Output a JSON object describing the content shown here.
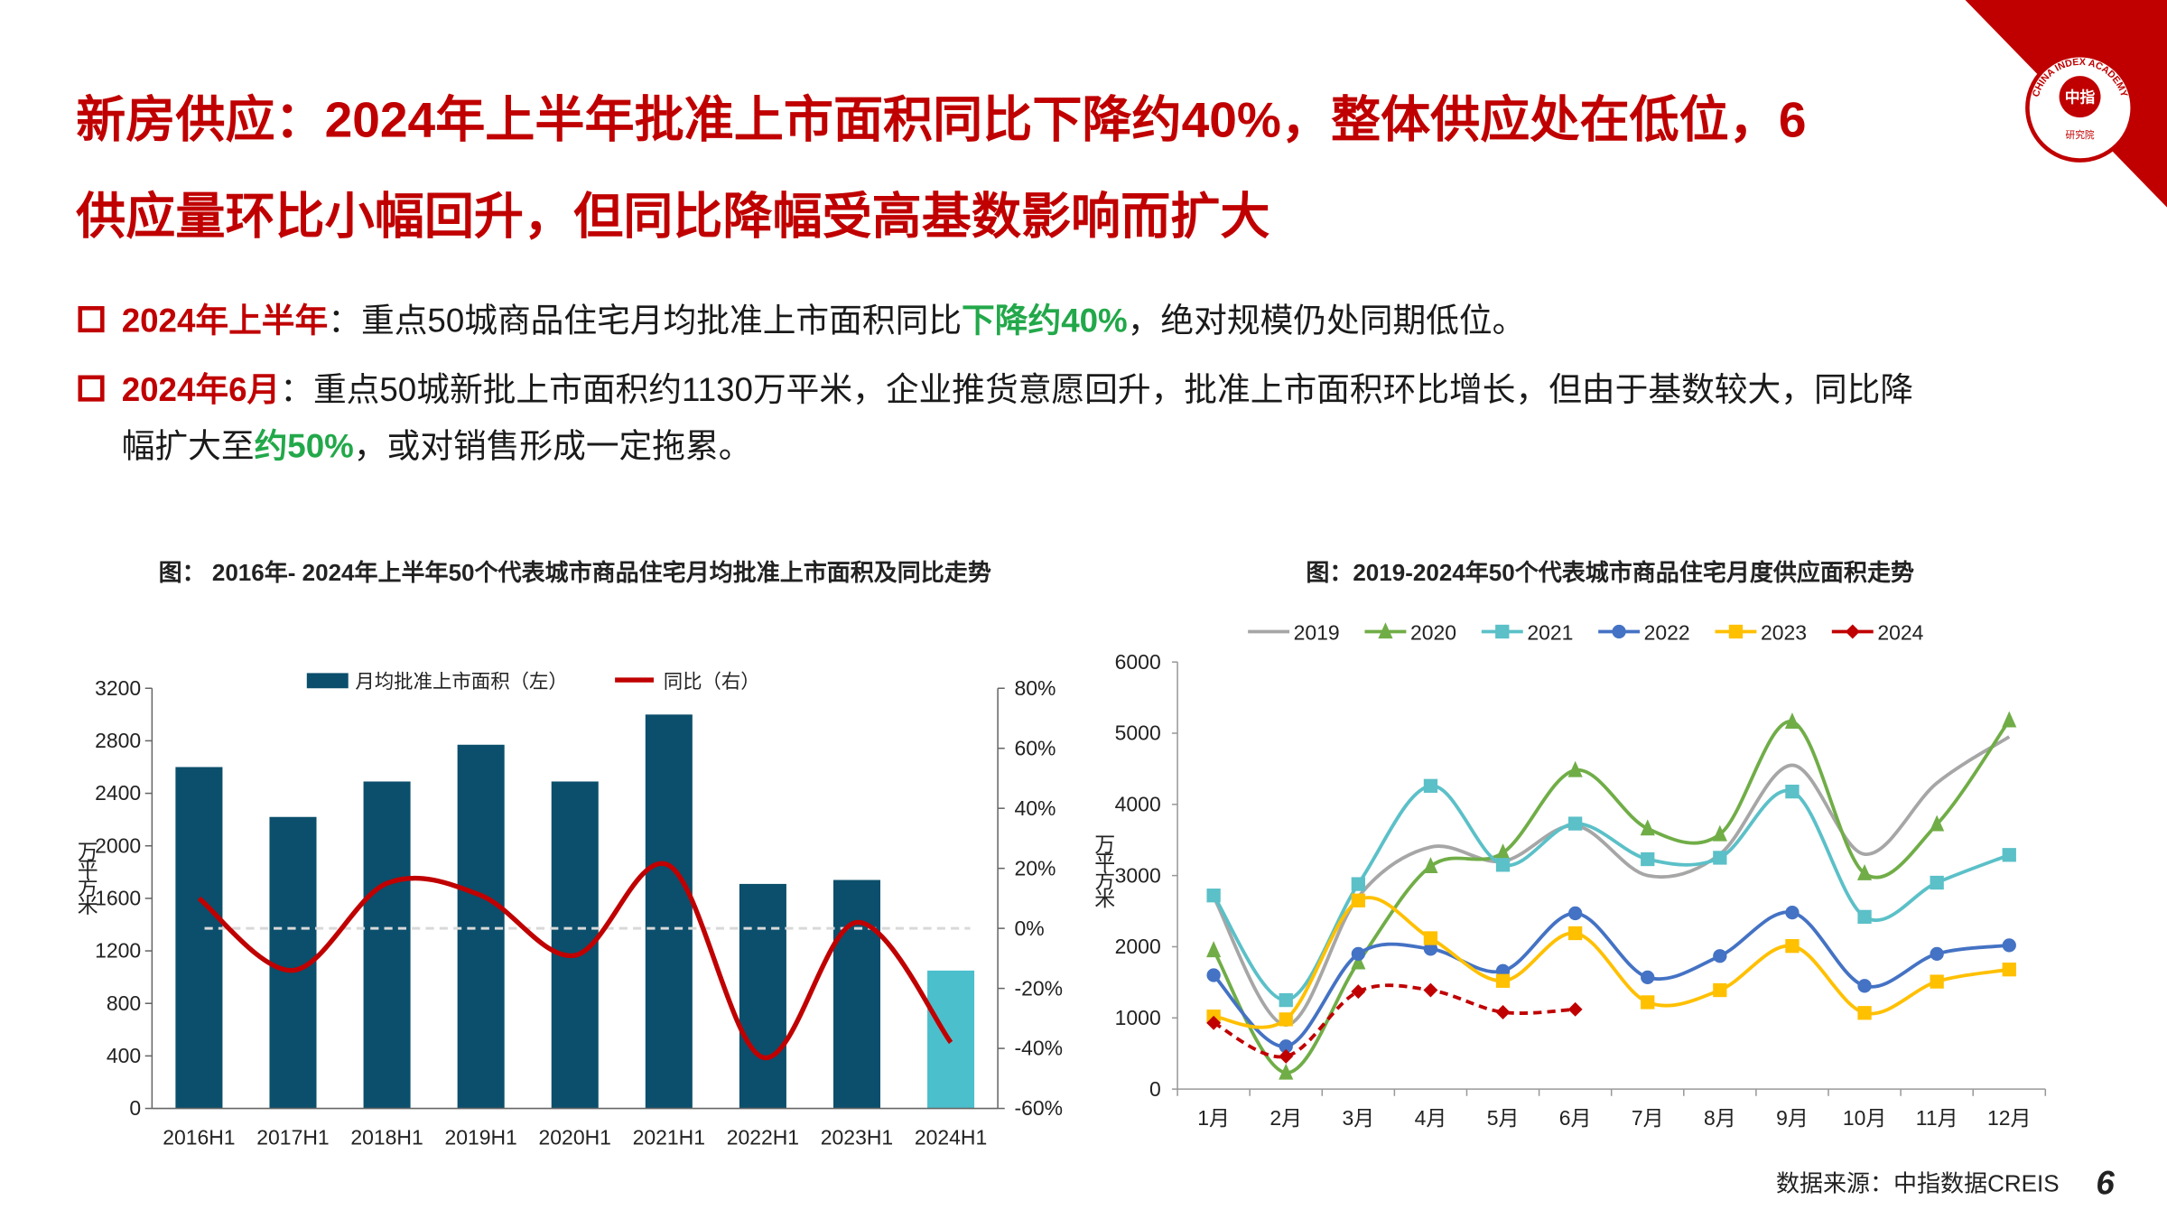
{
  "header": {
    "title_lines": [
      "新房供应：2024年上半年批准上市面积同比下降约40%，整体供应处在低位，6",
      "供应量环比小幅回升，但同比降幅受高基数影响而扩大"
    ]
  },
  "bullets": [
    {
      "lines": [
        [
          {
            "text": "2024年上半年",
            "style": "red"
          },
          {
            "text": "：重点50城商品住宅月均批准上市面积同比",
            "style": "normal"
          },
          {
            "text": "下降约40%",
            "style": "green"
          },
          {
            "text": "，绝对规模仍处同期低位。",
            "style": "normal"
          }
        ]
      ]
    },
    {
      "lines": [
        [
          {
            "text": "2024年6月",
            "style": "red"
          },
          {
            "text": "：重点50城新批上市面积约1130万平米，企业推货意愿回升，批准上市面积环比增长，但由于基数较大，同比降",
            "style": "normal"
          }
        ],
        [
          {
            "text": "幅扩大至",
            "style": "normal"
          },
          {
            "text": "约50%",
            "style": "green"
          },
          {
            "text": "，或对销售形成一定拖累。",
            "style": "normal"
          }
        ]
      ]
    }
  ],
  "logo": {
    "center": "中指",
    "ring": "CHINA INDEX ACADEMY",
    "bottom": "研究院"
  },
  "footer": {
    "source": "数据来源：中指数据CREIS",
    "page": "6"
  },
  "chart_data": [
    {
      "type": "bar-line",
      "title": "图： 2016年- 2024年上半年50个代表城市商品住宅月均批准上市面积及同比走势",
      "y_axis_label": "万平方米",
      "categories": [
        "2016H1",
        "2017H1",
        "2018H1",
        "2019H1",
        "2020H1",
        "2021H1",
        "2022H1",
        "2023H1",
        "2024H1"
      ],
      "series": [
        {
          "name": "月均批准上市面积（左）",
          "type": "bar",
          "color": "#0b4f6c",
          "colors": [
            "#0b4f6c",
            "#0b4f6c",
            "#0b4f6c",
            "#0b4f6c",
            "#0b4f6c",
            "#0b4f6c",
            "#0b4f6c",
            "#0b4f6c",
            "#4bbfcc"
          ],
          "values": [
            2600,
            2220,
            2490,
            2770,
            2490,
            3000,
            1710,
            1740,
            1050
          ]
        },
        {
          "name": "同比（右）",
          "type": "line",
          "axis": "y2",
          "color": "#c00000",
          "values": [
            10,
            -14,
            15,
            11,
            -9,
            21,
            -43,
            2,
            -38
          ]
        }
      ],
      "ylim": [
        0,
        3200
      ],
      "yticks": [
        0,
        400,
        800,
        1200,
        1600,
        2000,
        2400,
        2800,
        3200
      ],
      "y2lim": [
        -60,
        80
      ],
      "y2ticks": [
        {
          "value": -60,
          "label": "-60%"
        },
        {
          "value": -40,
          "label": "-40%"
        },
        {
          "value": -20,
          "label": "-20%"
        },
        {
          "value": 0,
          "label": "0%"
        },
        {
          "value": 20,
          "label": "20%"
        },
        {
          "value": 40,
          "label": "40%"
        },
        {
          "value": 60,
          "label": "60%"
        },
        {
          "value": 80,
          "label": "80%"
        }
      ],
      "zero_line": true,
      "smooth": true,
      "legend": "top"
    },
    {
      "type": "line",
      "title": "图：2019-2024年50个代表城市商品住宅月度供应面积走势",
      "y_axis_label": "万平方米",
      "categories": [
        "1月",
        "2月",
        "3月",
        "4月",
        "5月",
        "6月",
        "7月",
        "8月",
        "9月",
        "10月",
        "11月",
        "12月"
      ],
      "series": [
        {
          "name": "2019",
          "color": "#a6a6a6",
          "marker": "none",
          "dash": false,
          "values": [
            2700,
            900,
            2700,
            3400,
            3200,
            3700,
            3000,
            3300,
            4550,
            3300,
            4300,
            4950
          ]
        },
        {
          "name": "2020",
          "color": "#70ad47",
          "marker": "triangle",
          "dash": false,
          "values": [
            1950,
            230,
            1780,
            3130,
            3320,
            4480,
            3660,
            3580,
            5160,
            3030,
            3720,
            5180
          ]
        },
        {
          "name": "2021",
          "color": "#5bc0c8",
          "marker": "square",
          "dash": false,
          "values": [
            2720,
            1250,
            2880,
            4260,
            3150,
            3730,
            3230,
            3250,
            4180,
            2420,
            2900,
            3290
          ]
        },
        {
          "name": "2022",
          "color": "#4472c4",
          "marker": "circle",
          "dash": false,
          "values": [
            1600,
            600,
            1900,
            1970,
            1660,
            2470,
            1570,
            1870,
            2480,
            1450,
            1900,
            2020
          ]
        },
        {
          "name": "2023",
          "color": "#ffc000",
          "marker": "square",
          "dash": false,
          "values": [
            1020,
            980,
            2650,
            2120,
            1520,
            2190,
            1220,
            1390,
            2010,
            1070,
            1510,
            1680
          ]
        },
        {
          "name": "2024",
          "color": "#c00000",
          "marker": "diamond",
          "dash": true,
          "values": [
            930,
            460,
            1370,
            1390,
            1080,
            1120,
            null,
            null,
            null,
            null,
            null,
            null
          ]
        }
      ],
      "ylim": [
        0,
        6000
      ],
      "yticks": [
        0,
        1000,
        2000,
        3000,
        4000,
        5000,
        6000
      ],
      "smooth": true,
      "legend": "top"
    }
  ]
}
